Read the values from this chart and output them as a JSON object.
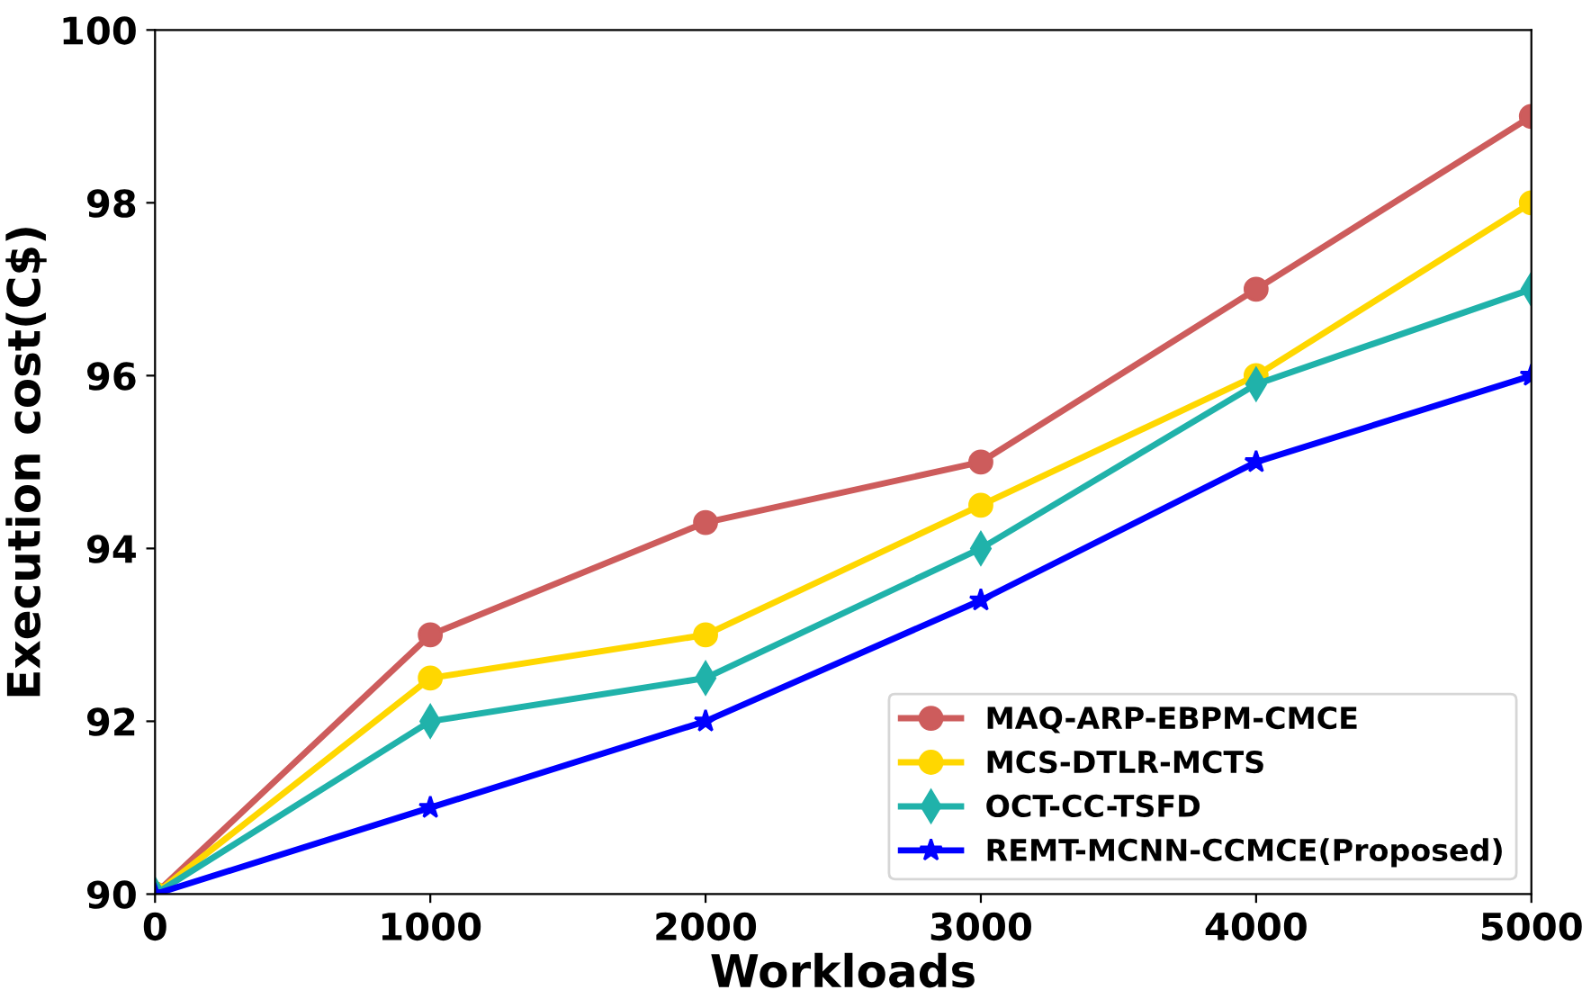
{
  "chart_data": {
    "type": "line",
    "xlabel": "Workloads",
    "ylabel": "Execution cost(C$)",
    "x": [
      0,
      1000,
      2000,
      3000,
      4000,
      5000
    ],
    "series": [
      {
        "name": "MAQ-ARP-EBPM-CMCE",
        "color": "#cd5c5c",
        "marker": "circle",
        "values": [
          90,
          93,
          94.3,
          95,
          97,
          99
        ]
      },
      {
        "name": "MCS-DTLR-MCTS",
        "color": "#ffd700",
        "marker": "circle",
        "values": [
          90,
          92.5,
          93,
          94.5,
          96,
          98
        ]
      },
      {
        "name": "OCT-CC-TSFD",
        "color": "#20b2aa",
        "marker": "diamond",
        "values": [
          90,
          92,
          92.5,
          94,
          95.9,
          97
        ]
      },
      {
        "name": "REMT-MCNN-CCMCE(Proposed)",
        "color": "#0000ff",
        "marker": "star",
        "values": [
          90,
          91,
          92,
          93.4,
          95,
          96
        ]
      }
    ],
    "xlim": [
      0,
      5000
    ],
    "xticks": [
      0,
      1000,
      2000,
      3000,
      4000,
      5000
    ],
    "ylim": [
      90,
      100
    ],
    "yticks": [
      90,
      92,
      94,
      96,
      98,
      100
    ],
    "grid": false,
    "legend": "bottom right",
    "line_style": "solid"
  }
}
